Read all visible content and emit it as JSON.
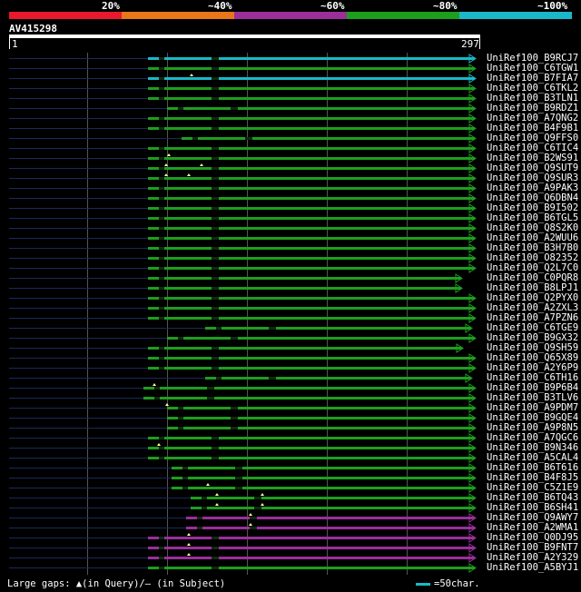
{
  "legend": {
    "labels": [
      "20%",
      "~40%",
      "~60%",
      "~80%",
      "~100%"
    ],
    "colors": [
      "#e8192c",
      "#e8761a",
      "#9a2f9a",
      "#1e9e1e",
      "#1ab8c8"
    ]
  },
  "query": {
    "id": "AV415298",
    "start": "1",
    "end": "297"
  },
  "hits": [
    {
      "name": "UniRef100_B9RCJ7",
      "color": "#1ab8c8"
    },
    {
      "name": "UniRef100_C6TGW1",
      "color": "#1e9e1e"
    },
    {
      "name": "UniRef100_B7FIA7",
      "color": "#1ab8c8"
    },
    {
      "name": "UniRef100_C6TKL2",
      "color": "#1e9e1e"
    },
    {
      "name": "UniRef100_B3TLN1",
      "color": "#1e9e1e"
    },
    {
      "name": "UniRef100_B9RDZ1",
      "color": "#1e9e1e"
    },
    {
      "name": "UniRef100_A7QNG2",
      "color": "#1e9e1e"
    },
    {
      "name": "UniRef100_B4F9B1",
      "color": "#1e9e1e"
    },
    {
      "name": "UniRef100_Q9FFS0",
      "color": "#1e9e1e"
    },
    {
      "name": "UniRef100_C6TIC4",
      "color": "#1e9e1e"
    },
    {
      "name": "UniRef100_B2WS91",
      "color": "#1e9e1e"
    },
    {
      "name": "UniRef100_Q9SUT9",
      "color": "#1e9e1e"
    },
    {
      "name": "UniRef100_Q9SUR3",
      "color": "#1e9e1e"
    },
    {
      "name": "UniRef100_A9PAK3",
      "color": "#1e9e1e"
    },
    {
      "name": "UniRef100_Q6DBN4",
      "color": "#1e9e1e"
    },
    {
      "name": "UniRef100_B9I502",
      "color": "#1e9e1e"
    },
    {
      "name": "UniRef100_B6TGL5",
      "color": "#1e9e1e"
    },
    {
      "name": "UniRef100_Q8S2K0",
      "color": "#1e9e1e"
    },
    {
      "name": "UniRef100_A2WUU6",
      "color": "#1e9e1e"
    },
    {
      "name": "UniRef100_B3H7B0",
      "color": "#1e9e1e"
    },
    {
      "name": "UniRef100_O82352",
      "color": "#1e9e1e"
    },
    {
      "name": "UniRef100_Q2L7C0",
      "color": "#1e9e1e"
    },
    {
      "name": "UniRef100_C0PQR8",
      "color": "#1e9e1e"
    },
    {
      "name": "UniRef100_B8LPJ1",
      "color": "#1e9e1e"
    },
    {
      "name": "UniRef100_Q2PYX0",
      "color": "#1e9e1e"
    },
    {
      "name": "UniRef100_A2ZXL3",
      "color": "#1e9e1e"
    },
    {
      "name": "UniRef100_A7PZN6",
      "color": "#1e9e1e"
    },
    {
      "name": "UniRef100_C6TGE9",
      "color": "#1e9e1e"
    },
    {
      "name": "UniRef100_B9GX32",
      "color": "#1e9e1e"
    },
    {
      "name": "UniRef100_Q9SH59",
      "color": "#1e9e1e"
    },
    {
      "name": "UniRef100_Q65X89",
      "color": "#1e9e1e"
    },
    {
      "name": "UniRef100_A2Y6P9",
      "color": "#1e9e1e"
    },
    {
      "name": "UniRef100_C6TH16",
      "color": "#1e9e1e"
    },
    {
      "name": "UniRef100_B9P6B4",
      "color": "#1e9e1e"
    },
    {
      "name": "UniRef100_B3TLV6",
      "color": "#1e9e1e"
    },
    {
      "name": "UniRef100_A9PDM7",
      "color": "#1e9e1e"
    },
    {
      "name": "UniRef100_B9GQE4",
      "color": "#1e9e1e"
    },
    {
      "name": "UniRef100_A9P8N5",
      "color": "#1e9e1e"
    },
    {
      "name": "UniRef100_A7QGC6",
      "color": "#1e9e1e"
    },
    {
      "name": "UniRef100_B9N346",
      "color": "#1e9e1e"
    },
    {
      "name": "UniRef100_A5CAL4",
      "color": "#1e9e1e"
    },
    {
      "name": "UniRef100_B6T616",
      "color": "#1e9e1e"
    },
    {
      "name": "UniRef100_B4F8J5",
      "color": "#1e9e1e"
    },
    {
      "name": "UniRef100_C5Z1E9",
      "color": "#1e9e1e"
    },
    {
      "name": "UniRef100_B6TQ43",
      "color": "#1e9e1e"
    },
    {
      "name": "UniRef100_B6SH41",
      "color": "#1e9e1e"
    },
    {
      "name": "UniRef100_Q9AWY7",
      "color": "#9a2f9a"
    },
    {
      "name": "UniRef100_A2WMA1",
      "color": "#9a2f9a"
    },
    {
      "name": "UniRef100_Q0DJ95",
      "color": "#9a2f9a"
    },
    {
      "name": "UniRef100_B9FNT7",
      "color": "#9a2f9a"
    },
    {
      "name": "UniRef100_A2Y329",
      "color": "#9a2f9a"
    },
    {
      "name": "UniRef100_A5BYJ1",
      "color": "#1e9e1e"
    }
  ],
  "footer": {
    "text": "Large gaps: ▲(in Query)/— (in Subject)",
    "scale": "=50char."
  }
}
